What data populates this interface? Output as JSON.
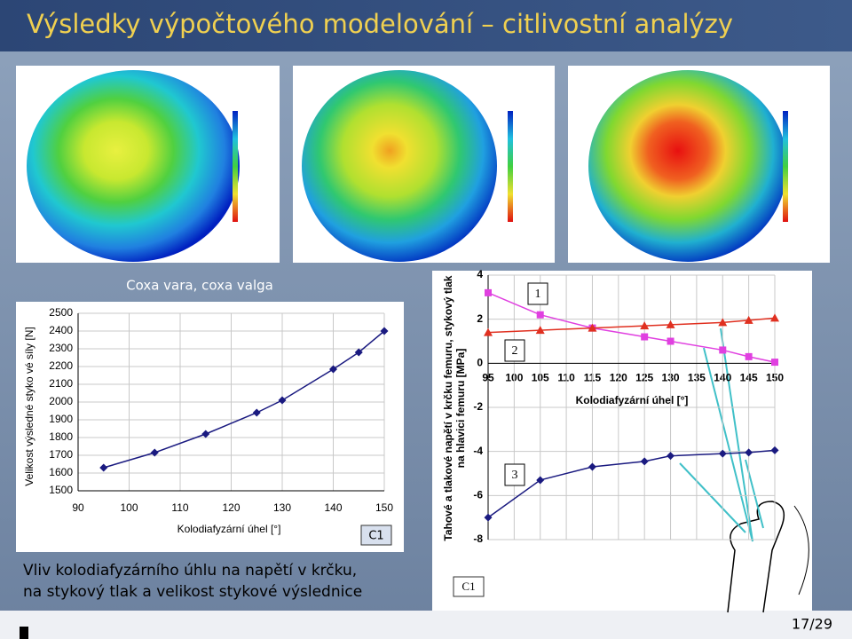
{
  "title": "Výsledky výpočtového modelování – citlivostní analýzy",
  "caption": "Coxa vara, coxa valga",
  "footer_text": [
    "Vliv kolodiafyzárního úhlu na napětí v krčku,",
    "na stykový tlak a velikost stykové výslednice"
  ],
  "page_number": "17/29",
  "chart_data": [
    {
      "type": "line",
      "x_label": "Kolodiafyzární úhel [°]",
      "y_label": "Velikost výsledné styko vé síly [N]",
      "annotation": "C1",
      "x": [
        95,
        105,
        115,
        125,
        130,
        140,
        145,
        150
      ],
      "values": [
        1630,
        1715,
        1820,
        1940,
        2010,
        2185,
        2280,
        2400
      ],
      "color": "#1a1a80",
      "marker": "diamond",
      "xlim": [
        90,
        150
      ],
      "xticks": [
        90,
        100,
        110,
        120,
        130,
        140,
        150
      ],
      "ylim": [
        1500,
        2500
      ],
      "yticks": [
        1500,
        1600,
        1700,
        1800,
        1900,
        2000,
        2100,
        2200,
        2300,
        2400,
        2500
      ],
      "grid": true
    },
    {
      "type": "line",
      "x_label": "Kolodiafyzární úhel [°]",
      "y_label": [
        "Tahové a tlakové napětí v krčku femuru, stykový tlak",
        "na hlavici femuru [MPa]"
      ],
      "annotation": "C1",
      "x": [
        95,
        105,
        115,
        125,
        130,
        140,
        145,
        150
      ],
      "series": [
        {
          "name": "1",
          "color": "#e040e0",
          "marker": "square",
          "values": [
            3.2,
            2.2,
            1.6,
            1.2,
            1.0,
            0.6,
            0.3,
            0.05
          ]
        },
        {
          "name": "2",
          "color": "#e03020",
          "marker": "triangle",
          "values": [
            1.4,
            1.5,
            1.6,
            1.7,
            1.75,
            1.85,
            1.95,
            2.05
          ]
        },
        {
          "name": "3",
          "color": "#1a1a80",
          "marker": "diamond",
          "values": [
            -7.0,
            -5.3,
            -4.7,
            -4.45,
            -4.2,
            -4.1,
            -4.05,
            -3.95
          ]
        }
      ],
      "xlim": [
        95,
        150
      ],
      "xticks": [
        95,
        100,
        105,
        110,
        115,
        120,
        125,
        130,
        135,
        140,
        145,
        150
      ],
      "ylim": [
        -8,
        4
      ],
      "yticks": [
        -8,
        -6,
        -4,
        -2,
        0,
        2,
        4
      ],
      "grid": true
    }
  ]
}
